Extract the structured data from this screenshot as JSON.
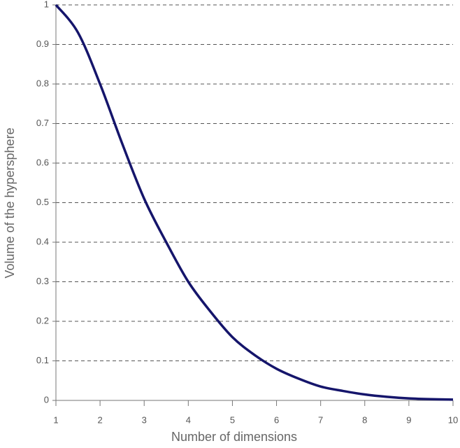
{
  "chart_data": {
    "type": "line",
    "x_label": "Number of dimensions",
    "y_label": "Volume of the hypersphere",
    "x": [
      1,
      1.5,
      2,
      2.5,
      3,
      3.5,
      4,
      4.5,
      5,
      5.5,
      6,
      6.5,
      7,
      7.5,
      8,
      8.5,
      9,
      9.5,
      10
    ],
    "values": [
      1,
      0.93,
      0.8,
      0.65,
      0.51,
      0.4,
      0.3,
      0.225,
      0.16,
      0.115,
      0.08,
      0.055,
      0.035,
      0.024,
      0.015,
      0.009,
      0.005,
      0.003,
      0.002
    ],
    "color": "#15156b",
    "xlim": [
      1,
      10
    ],
    "xticks": [
      1,
      2,
      3,
      4,
      5,
      6,
      7,
      8,
      9,
      10
    ],
    "ylim": [
      0,
      1
    ],
    "yticks": [
      0,
      0.1,
      0.2,
      0.3,
      0.4,
      0.5,
      0.6,
      0.7,
      0.8,
      0.9,
      1
    ],
    "grid": true
  }
}
